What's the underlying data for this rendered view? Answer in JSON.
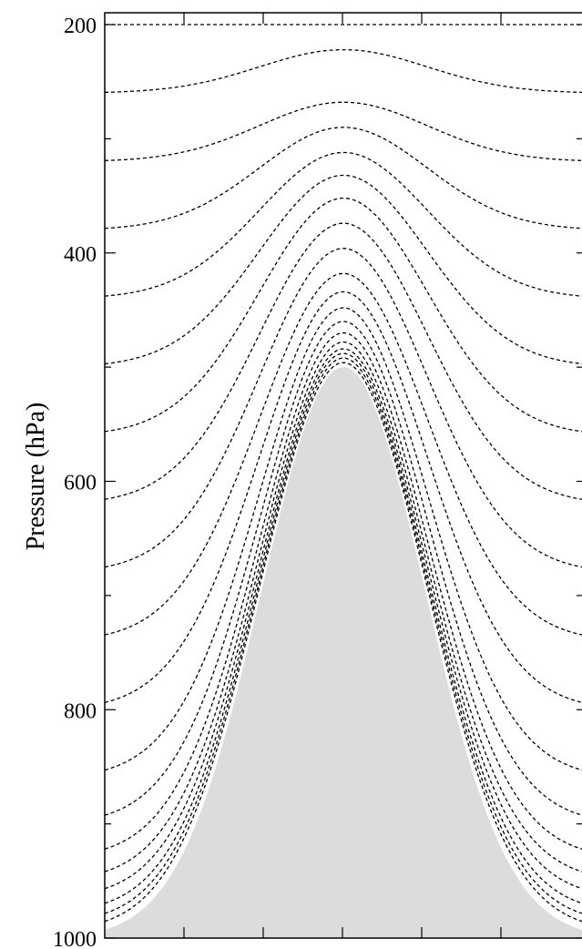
{
  "chart_data": {
    "type": "line",
    "title": "",
    "xlabel": "",
    "ylabel": "Pressure (hPa)",
    "ylim": [
      1000,
      200
    ],
    "y_ticks_major": [
      200,
      400,
      600,
      800,
      1000
    ],
    "y_ticks_minor": [
      300,
      500,
      700,
      900
    ],
    "x_ticks_count": 5,
    "terrain": {
      "top_pressure": 500,
      "base_pressure": 1000,
      "fill_color": "#dcdcdc"
    },
    "levels": [
      {
        "far_pressure": 200,
        "crest_pressure": 200
      },
      {
        "far_pressure": 260,
        "crest_pressure": 222
      },
      {
        "far_pressure": 320,
        "crest_pressure": 268
      },
      {
        "far_pressure": 380,
        "crest_pressure": 290
      },
      {
        "far_pressure": 440,
        "crest_pressure": 312
      },
      {
        "far_pressure": 500,
        "crest_pressure": 332
      },
      {
        "far_pressure": 560,
        "crest_pressure": 352
      },
      {
        "far_pressure": 620,
        "crest_pressure": 374
      },
      {
        "far_pressure": 680,
        "crest_pressure": 396
      },
      {
        "far_pressure": 740,
        "crest_pressure": 418
      },
      {
        "far_pressure": 800,
        "crest_pressure": 434
      },
      {
        "far_pressure": 860,
        "crest_pressure": 448
      },
      {
        "far_pressure": 900,
        "crest_pressure": 460
      },
      {
        "far_pressure": 930,
        "crest_pressure": 470
      },
      {
        "far_pressure": 950,
        "crest_pressure": 478
      },
      {
        "far_pressure": 965,
        "crest_pressure": 484
      },
      {
        "far_pressure": 978,
        "crest_pressure": 488
      },
      {
        "far_pressure": 987,
        "crest_pressure": 492
      },
      {
        "far_pressure": 994,
        "crest_pressure": 496
      }
    ]
  }
}
